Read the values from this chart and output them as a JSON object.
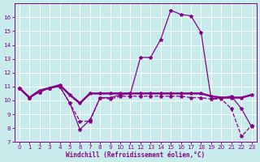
{
  "xlabel": "Windchill (Refroidissement éolien,°C)",
  "background_color": "#c8ecec",
  "grid_color": "#ffffff",
  "line_color": "#880088",
  "xlim": [
    -0.5,
    23.5
  ],
  "ylim": [
    7,
    17
  ],
  "yticks": [
    7,
    8,
    9,
    10,
    11,
    12,
    13,
    14,
    15,
    16
  ],
  "xticks": [
    0,
    1,
    2,
    3,
    4,
    5,
    6,
    7,
    8,
    9,
    10,
    11,
    12,
    13,
    14,
    15,
    16,
    17,
    18,
    19,
    20,
    21,
    22,
    23
  ],
  "curve1_x": [
    0,
    1,
    2,
    3,
    4,
    5,
    6,
    7,
    8,
    9,
    10,
    11,
    12,
    13,
    14,
    15,
    16,
    17,
    18,
    19,
    20,
    21,
    22,
    23
  ],
  "curve1_y": [
    10.9,
    10.2,
    10.6,
    10.9,
    11.0,
    9.8,
    7.9,
    8.6,
    10.2,
    10.2,
    10.4,
    10.5,
    13.1,
    13.1,
    14.4,
    16.5,
    16.2,
    16.1,
    14.9,
    10.1,
    10.2,
    10.3,
    9.4,
    8.1
  ],
  "curve2_x": [
    0,
    1,
    2,
    3,
    4,
    5,
    6,
    7,
    8,
    9,
    10,
    11,
    12,
    13,
    14,
    15,
    16,
    17,
    18,
    19,
    20,
    21,
    22,
    23
  ],
  "curve2_y": [
    10.9,
    10.2,
    10.7,
    10.9,
    11.1,
    10.4,
    9.8,
    10.5,
    10.5,
    10.5,
    10.5,
    10.5,
    10.5,
    10.5,
    10.5,
    10.5,
    10.5,
    10.5,
    10.5,
    10.3,
    10.2,
    10.2,
    10.2,
    10.4
  ],
  "curve3_x": [
    0,
    1,
    2,
    3,
    4,
    5,
    6,
    7,
    8,
    9,
    10,
    11,
    12,
    13,
    14,
    15,
    16,
    17,
    18,
    19,
    20,
    21,
    22,
    23
  ],
  "curve3_y": [
    10.9,
    10.2,
    10.6,
    10.9,
    11.0,
    9.8,
    8.5,
    8.5,
    10.2,
    10.1,
    10.3,
    10.3,
    10.3,
    10.3,
    10.3,
    10.3,
    10.3,
    10.2,
    10.2,
    10.1,
    10.1,
    9.4,
    7.4,
    8.2
  ],
  "marker": "*",
  "ms1": 3,
  "ms2": 3,
  "ms3": 3,
  "lw1": 0.9,
  "lw2": 1.8,
  "lw3": 0.9
}
